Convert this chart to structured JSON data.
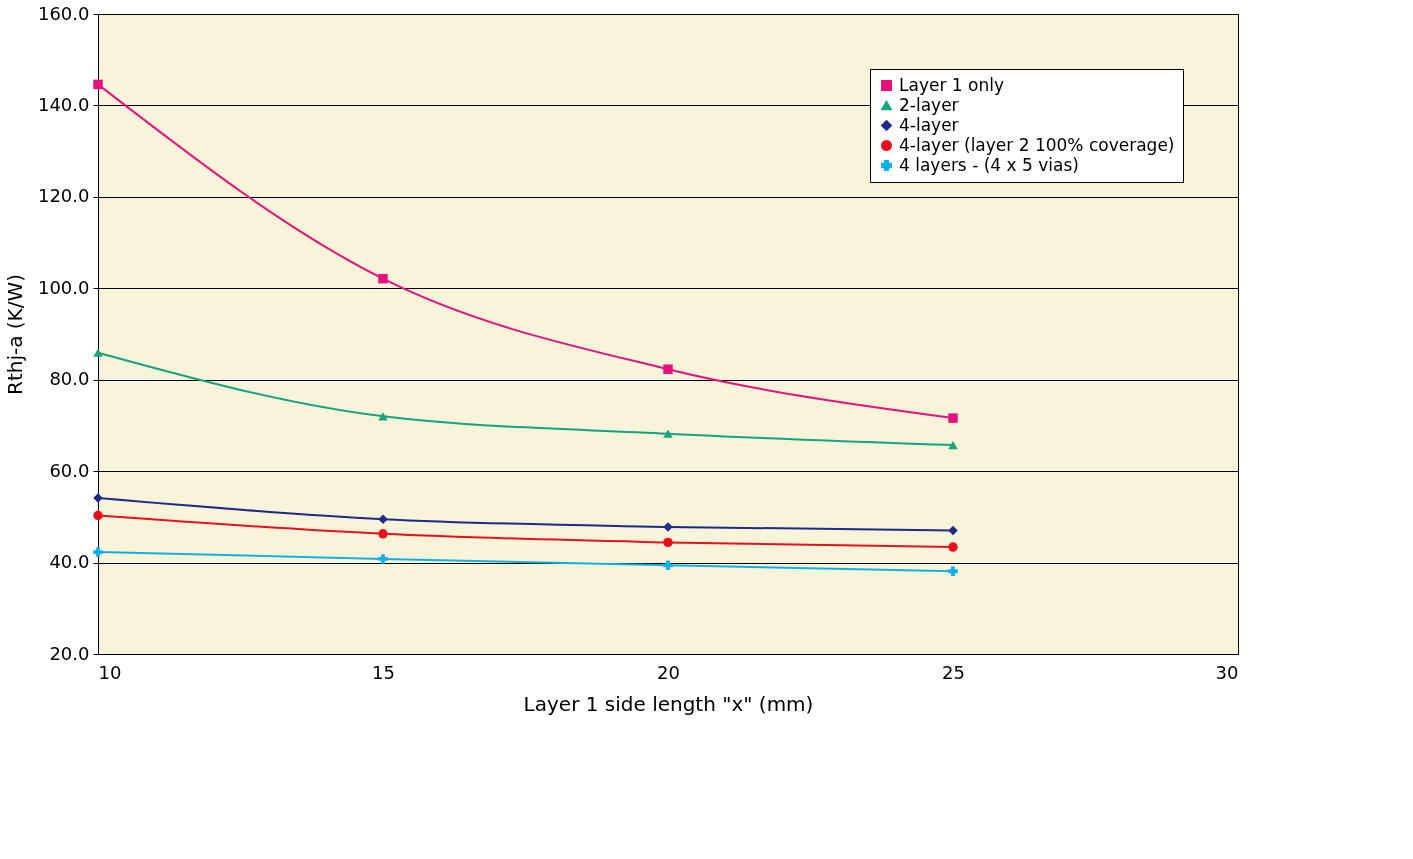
{
  "chart_data": {
    "type": "line",
    "xlabel": "Layer 1 side length \"x\" (mm)",
    "ylabel": "Rthj-a (K/W)",
    "x": [
      10,
      15,
      20,
      25
    ],
    "series": [
      {
        "name": "Layer 1 only",
        "color": "#e6117f",
        "marker": "square",
        "values": [
          144.6,
          102.1,
          82.3,
          71.6
        ]
      },
      {
        "name": "2-layer",
        "color": "#16a37f",
        "marker": "triangle",
        "values": [
          85.9,
          72.0,
          68.2,
          65.7
        ]
      },
      {
        "name": "4-layer",
        "color": "#1f2a8a",
        "marker": "diamond",
        "values": [
          54.1,
          49.5,
          47.8,
          47.0
        ]
      },
      {
        "name": "4-layer (layer 2 100% coverage)",
        "color": "#e8101f",
        "marker": "circle",
        "values": [
          50.3,
          46.3,
          44.4,
          43.4
        ]
      },
      {
        "name": "4 layers - (4 x 5 vias)",
        "color": "#13b0e6",
        "marker": "cross",
        "values": [
          42.3,
          40.8,
          39.4,
          38.1
        ]
      }
    ],
    "xlim": [
      10,
      30
    ],
    "xticks": [
      10,
      15,
      20,
      25,
      30
    ],
    "ylim": [
      20,
      160
    ],
    "yticks": [
      {
        "value": 20,
        "label": "20.0"
      },
      {
        "value": 40,
        "label": "40.0"
      },
      {
        "value": 60,
        "label": "60.0"
      },
      {
        "value": 80,
        "label": "80.0"
      },
      {
        "value": 100,
        "label": "100.0"
      },
      {
        "value": 120,
        "label": "120.0"
      },
      {
        "value": 140,
        "label": "140.0"
      },
      {
        "value": 160,
        "label": "160.0"
      }
    ],
    "grid": "y",
    "legend": "top right",
    "line_style": "solid"
  }
}
